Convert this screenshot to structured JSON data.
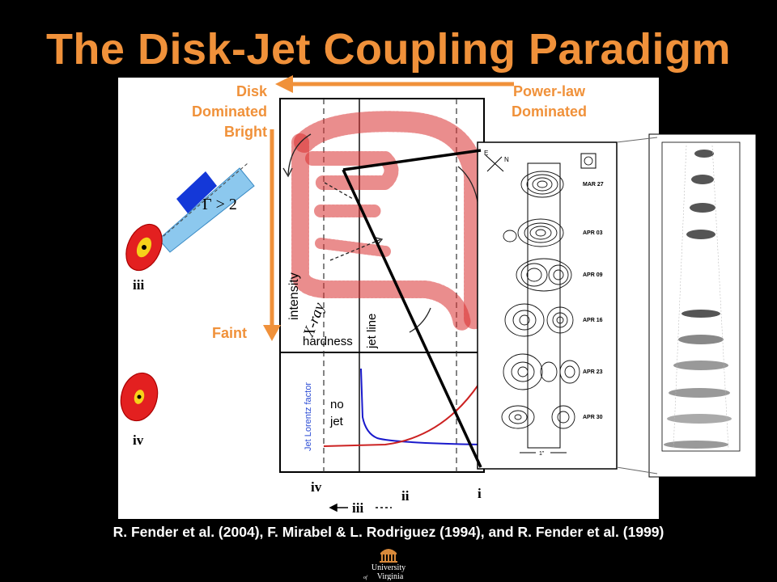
{
  "slide": {
    "title": "The Disk-Jet Coupling Paradigm",
    "caption": "R. Fender et al. (2004), F. Mirabel & L. Rodriguez (1994), and R. Fender et al. (1999)"
  },
  "overlay_labels": {
    "disk_dominated": [
      "Disk",
      "Dominated"
    ],
    "bright": "Bright",
    "powerlaw_dominated": [
      "Power-law",
      "Dominated"
    ],
    "faint": "Faint"
  },
  "diagram": {
    "gamma_label": "Γ > 2",
    "state_iii": "iii",
    "state_iv": "iv",
    "y_axis": [
      "intensity",
      "X-ray"
    ],
    "x_axis": "hardness",
    "jet_line": "jet line",
    "lorentz_axis": "Jet Lorentz factor",
    "no_jet": [
      "no",
      "jet"
    ],
    "bottom_labels": {
      "iv": "iv",
      "ii": "ii",
      "i": "i",
      "iii": "iii"
    }
  },
  "radio_maps": {
    "dates": [
      "MAR 27",
      "APR 03",
      "APR 09",
      "APR 16",
      "APR 23",
      "APR 30"
    ],
    "compass": {
      "e": "E",
      "n": "N"
    },
    "scale": "1\""
  },
  "logo": {
    "line1": "University",
    "line2": "Virginia",
    "of": "of"
  },
  "colors": {
    "accent": "#f0913a",
    "red_track": "#cc2222",
    "blue_curve": "#1a1acc"
  }
}
